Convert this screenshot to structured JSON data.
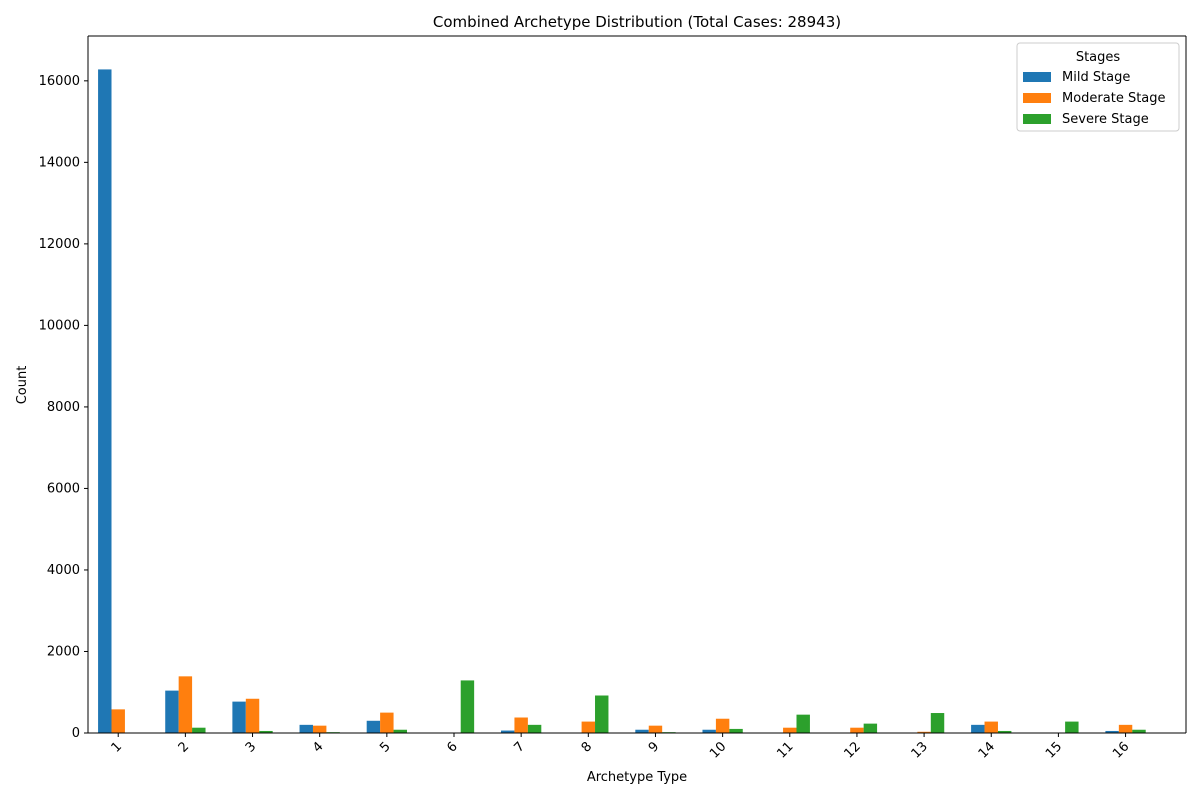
{
  "chart_data": {
    "type": "bar",
    "title": "Combined Archetype Distribution (Total Cases: 28943)",
    "xlabel": "Archetype Type",
    "ylabel": "Count",
    "ylim": [
      0,
      17100
    ],
    "yticks": [
      0,
      2000,
      4000,
      6000,
      8000,
      10000,
      12000,
      14000,
      16000
    ],
    "categories": [
      "1",
      "2",
      "3",
      "4",
      "5",
      "6",
      "7",
      "8",
      "9",
      "10",
      "11",
      "12",
      "13",
      "14",
      "15",
      "16"
    ],
    "legend": {
      "title": "Stages",
      "placement": "top-right"
    },
    "grid": false,
    "series": [
      {
        "name": "Mild Stage",
        "color": "#1f77b4",
        "values": [
          16280,
          1040,
          770,
          200,
          300,
          0,
          60,
          0,
          80,
          80,
          0,
          0,
          0,
          200,
          0,
          50
        ]
      },
      {
        "name": "Moderate Stage",
        "color": "#ff7f0e",
        "values": [
          580,
          1390,
          840,
          180,
          500,
          0,
          380,
          280,
          180,
          350,
          130,
          130,
          30,
          280,
          0,
          200
        ]
      },
      {
        "name": "Severe Stage",
        "color": "#2ca02c",
        "values": [
          0,
          130,
          50,
          20,
          80,
          1290,
          200,
          920,
          20,
          100,
          450,
          230,
          490,
          50,
          280,
          80
        ]
      }
    ]
  }
}
